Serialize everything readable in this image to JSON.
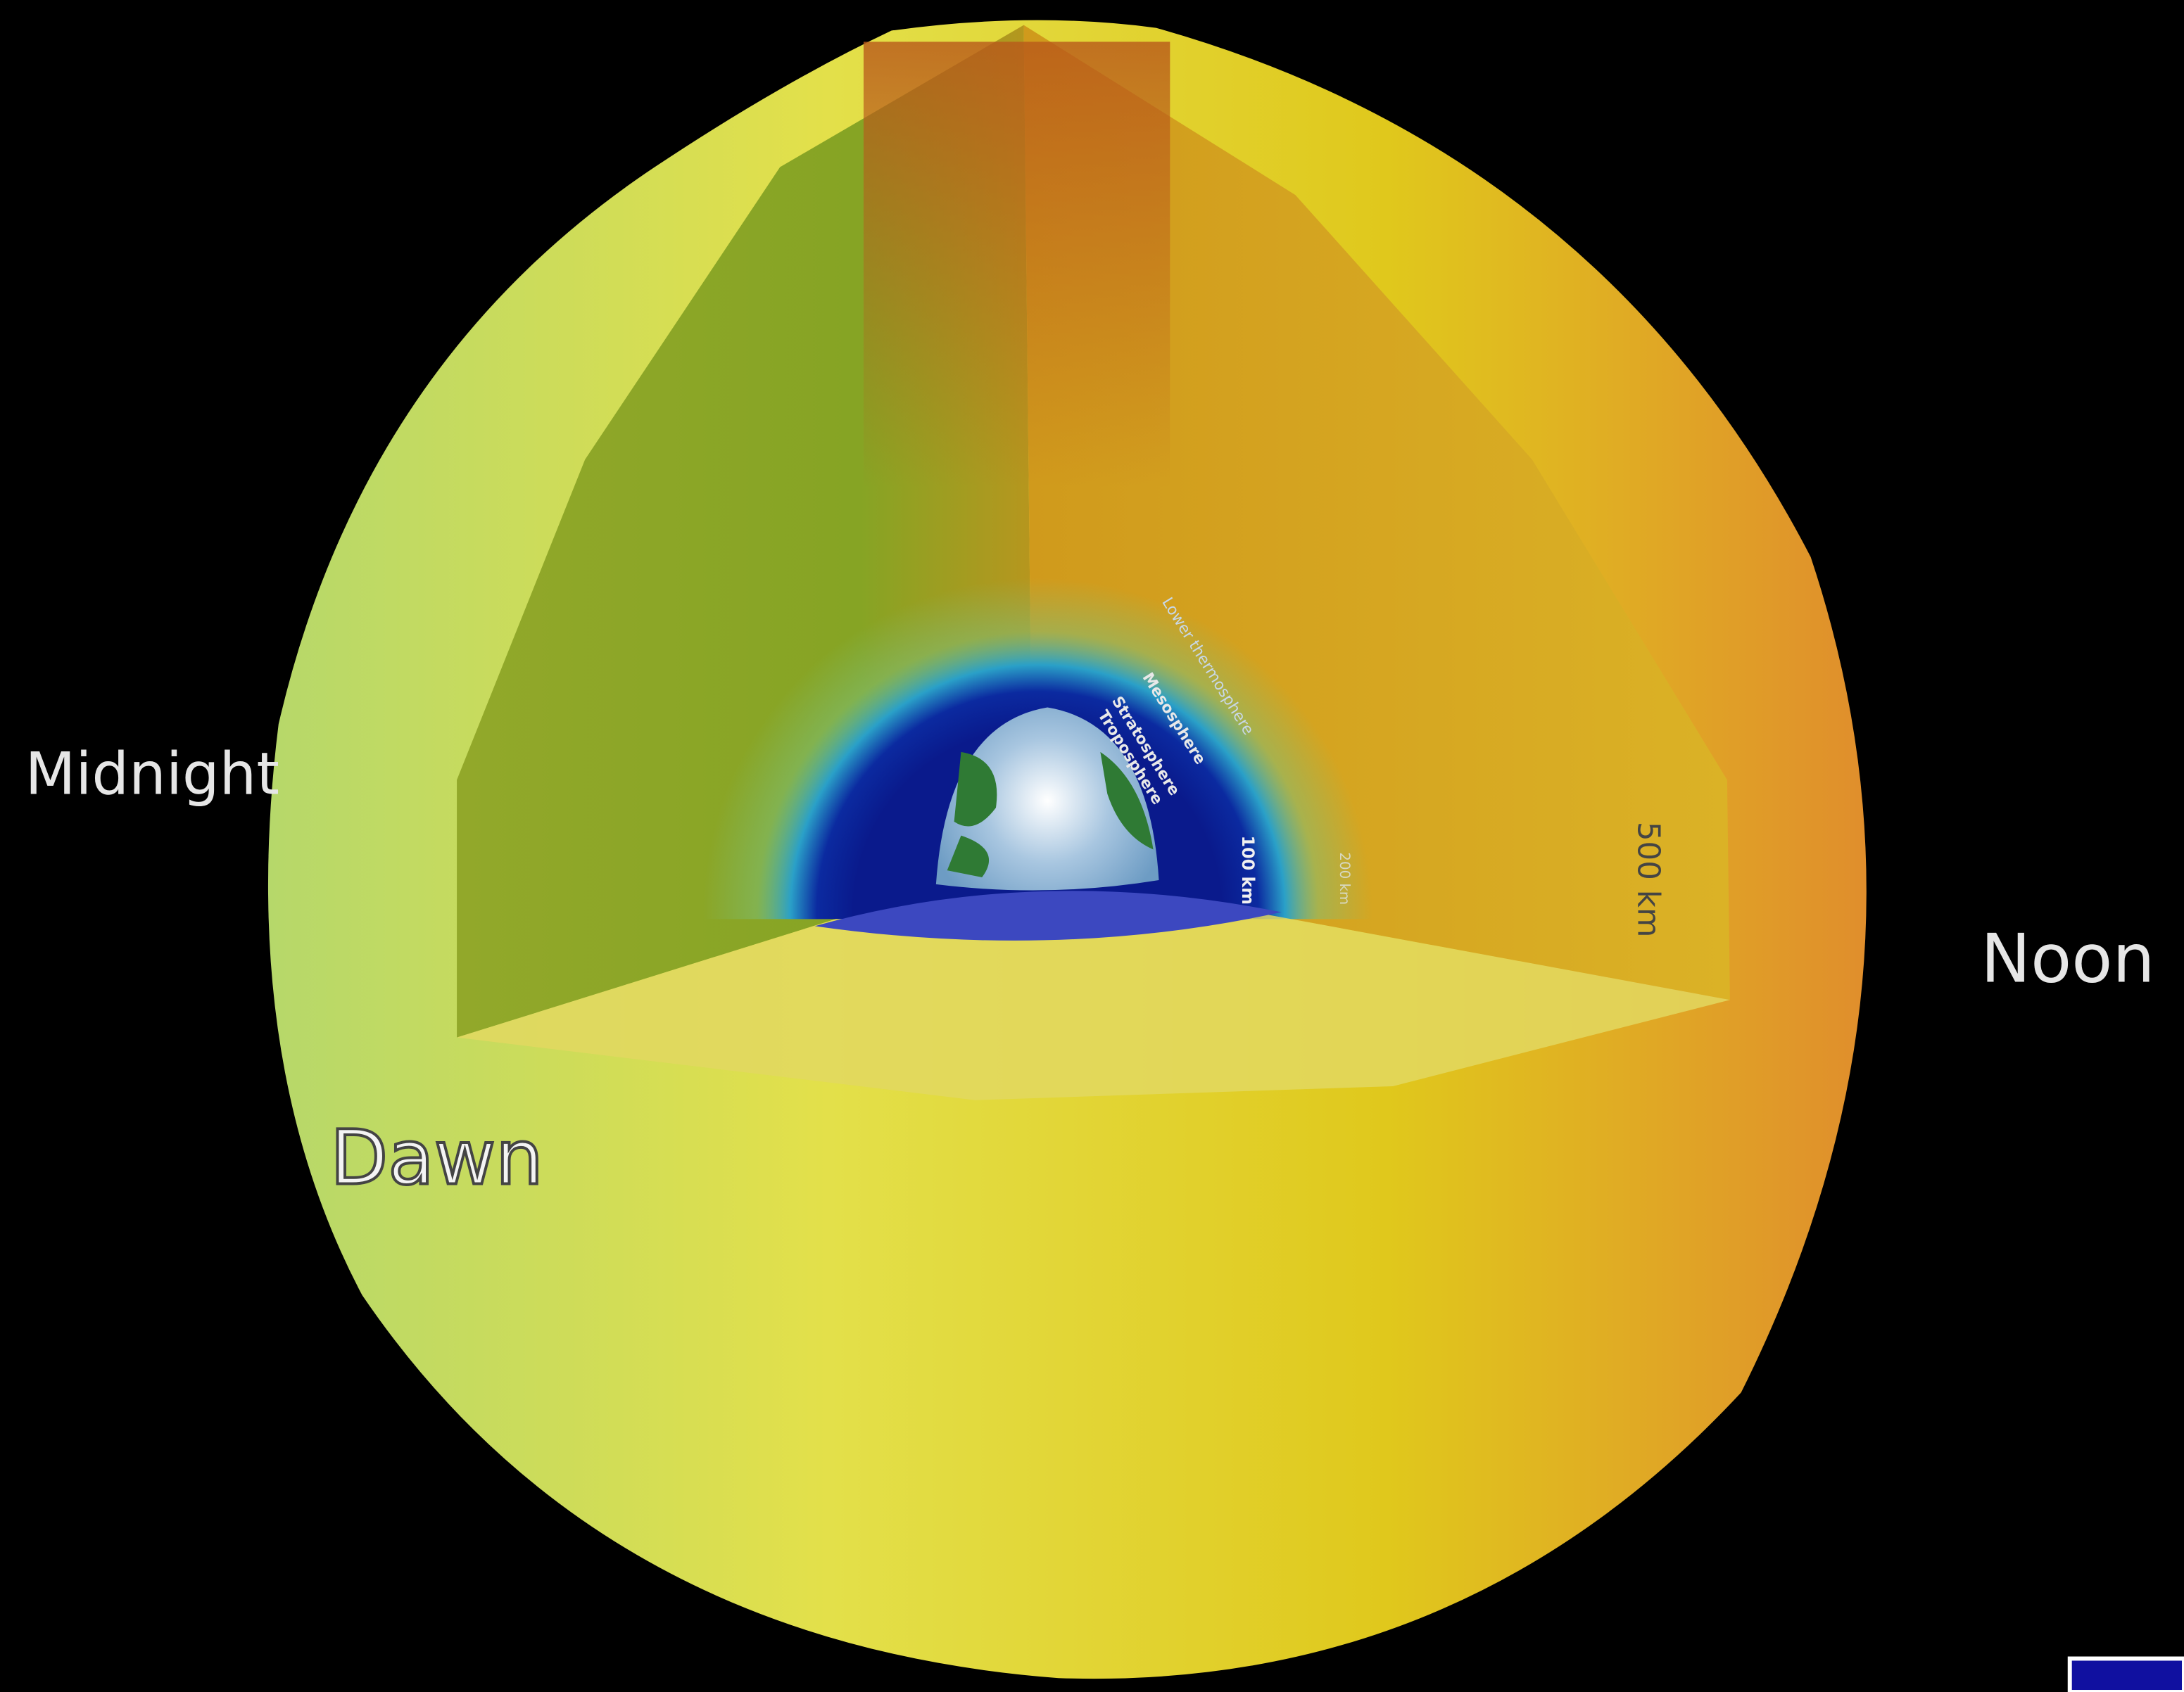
{
  "labels": {
    "midnight": "Midnight",
    "noon": "Noon",
    "dawn": "Dawn"
  },
  "layers": [
    "Lower thermosphere",
    "Mesosphere",
    "Stratosphere",
    "Troposphere"
  ],
  "altitudes": [
    "100 km",
    "200 km",
    "500 km"
  ]
}
